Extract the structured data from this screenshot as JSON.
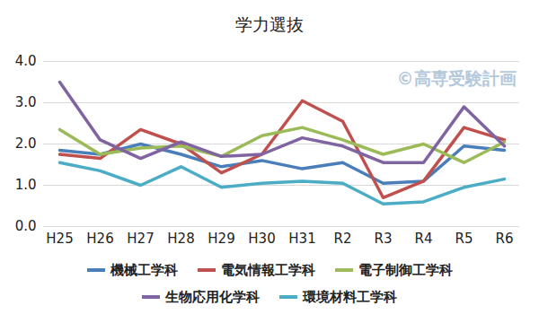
{
  "chart_data": {
    "type": "line",
    "title": "学力選抜",
    "annotations": [
      "©高専受験計画"
    ],
    "categories": [
      "H25",
      "H26",
      "H27",
      "H28",
      "H29",
      "H30",
      "H31",
      "R2",
      "R3",
      "R4",
      "R5",
      "R6"
    ],
    "series": [
      {
        "name": "機械工学科",
        "color": "#4a7ebb",
        "values": [
          1.85,
          1.75,
          2.0,
          1.75,
          1.45,
          1.6,
          1.4,
          1.55,
          1.05,
          1.1,
          1.95,
          1.85
        ]
      },
      {
        "name": "電気情報工学科",
        "color": "#c0504d",
        "values": [
          1.75,
          1.65,
          2.35,
          2.0,
          1.3,
          1.75,
          3.05,
          2.55,
          0.7,
          1.1,
          2.4,
          2.1
        ]
      },
      {
        "name": "電子制御工学科",
        "color": "#9bbb59",
        "values": [
          2.35,
          1.75,
          1.9,
          1.95,
          1.7,
          2.2,
          2.4,
          2.1,
          1.75,
          2.0,
          1.55,
          2.05
        ]
      },
      {
        "name": "生物応用化学科",
        "color": "#8064a2",
        "values": [
          3.5,
          2.1,
          1.65,
          2.05,
          1.7,
          1.75,
          2.15,
          1.95,
          1.55,
          1.55,
          2.9,
          1.95
        ]
      },
      {
        "name": "環境材料工学科",
        "color": "#4bacc6",
        "values": [
          1.55,
          1.35,
          1.0,
          1.45,
          0.95,
          1.05,
          1.1,
          1.05,
          0.55,
          0.6,
          0.95,
          1.15
        ]
      }
    ],
    "ylim": [
      0,
      4
    ],
    "yticks": [
      {
        "value": 0,
        "label": "0.0"
      },
      {
        "value": 1,
        "label": "1.0"
      },
      {
        "value": 2,
        "label": "2.0"
      },
      {
        "value": 3,
        "label": "3.0"
      },
      {
        "value": 4,
        "label": "4.0"
      }
    ],
    "grid": true,
    "legend": "bottom"
  }
}
